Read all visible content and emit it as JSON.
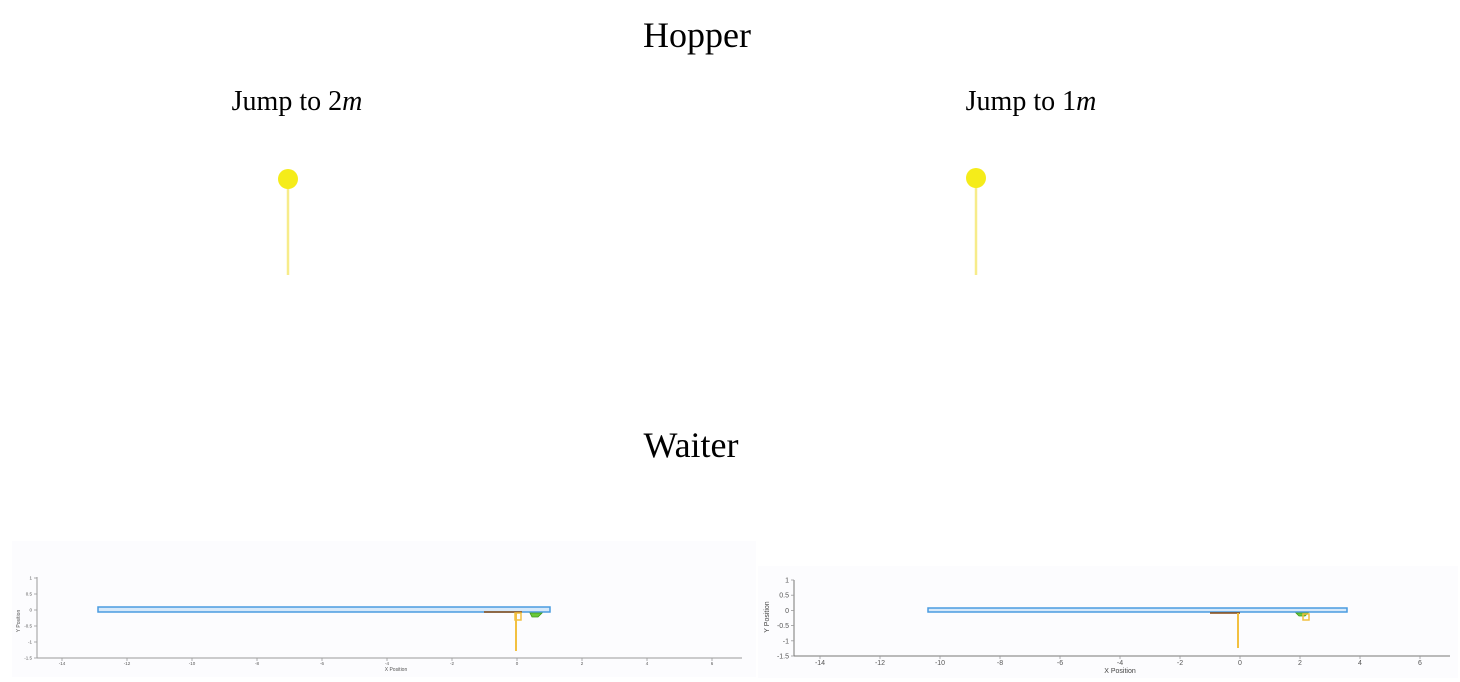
{
  "hopper": {
    "title": "Hopper",
    "panels": [
      {
        "label_prefix": "Jump to ",
        "label_value": "2",
        "label_unit": "m"
      },
      {
        "label_prefix": "Jump to ",
        "label_value": "1",
        "label_unit": "m"
      }
    ],
    "ball_color": "#f5ec1a",
    "leg_color": "#f7ec8a"
  },
  "waiter": {
    "title": "Waiter",
    "plots": [
      {
        "x_ticks": [
          "-14",
          "-12",
          "-10",
          "-8",
          "-6",
          "-4",
          "-2",
          "0",
          "2",
          "4",
          "6"
        ],
        "y_ticks": [
          "1",
          "0.5",
          "0",
          "-0.5",
          "-1",
          "-1.5"
        ],
        "xlabel": "X Position",
        "ylabel": "Y Position"
      },
      {
        "x_ticks": [
          "-14",
          "-12",
          "-10",
          "-8",
          "-6",
          "-4",
          "-2",
          "0",
          "2",
          "4",
          "6"
        ],
        "y_ticks": [
          "1",
          "0.5",
          "0",
          "-0.5",
          "-1",
          "-1.5"
        ],
        "xlabel": "X Position",
        "ylabel": "Y Position"
      }
    ],
    "colors": {
      "tray": "#4a9be0",
      "tray_fill": "#d6e9fa",
      "arm": "#8a4a10",
      "leg": "#f2c040",
      "cup": "#6cc93a",
      "axis": "#888888"
    }
  }
}
